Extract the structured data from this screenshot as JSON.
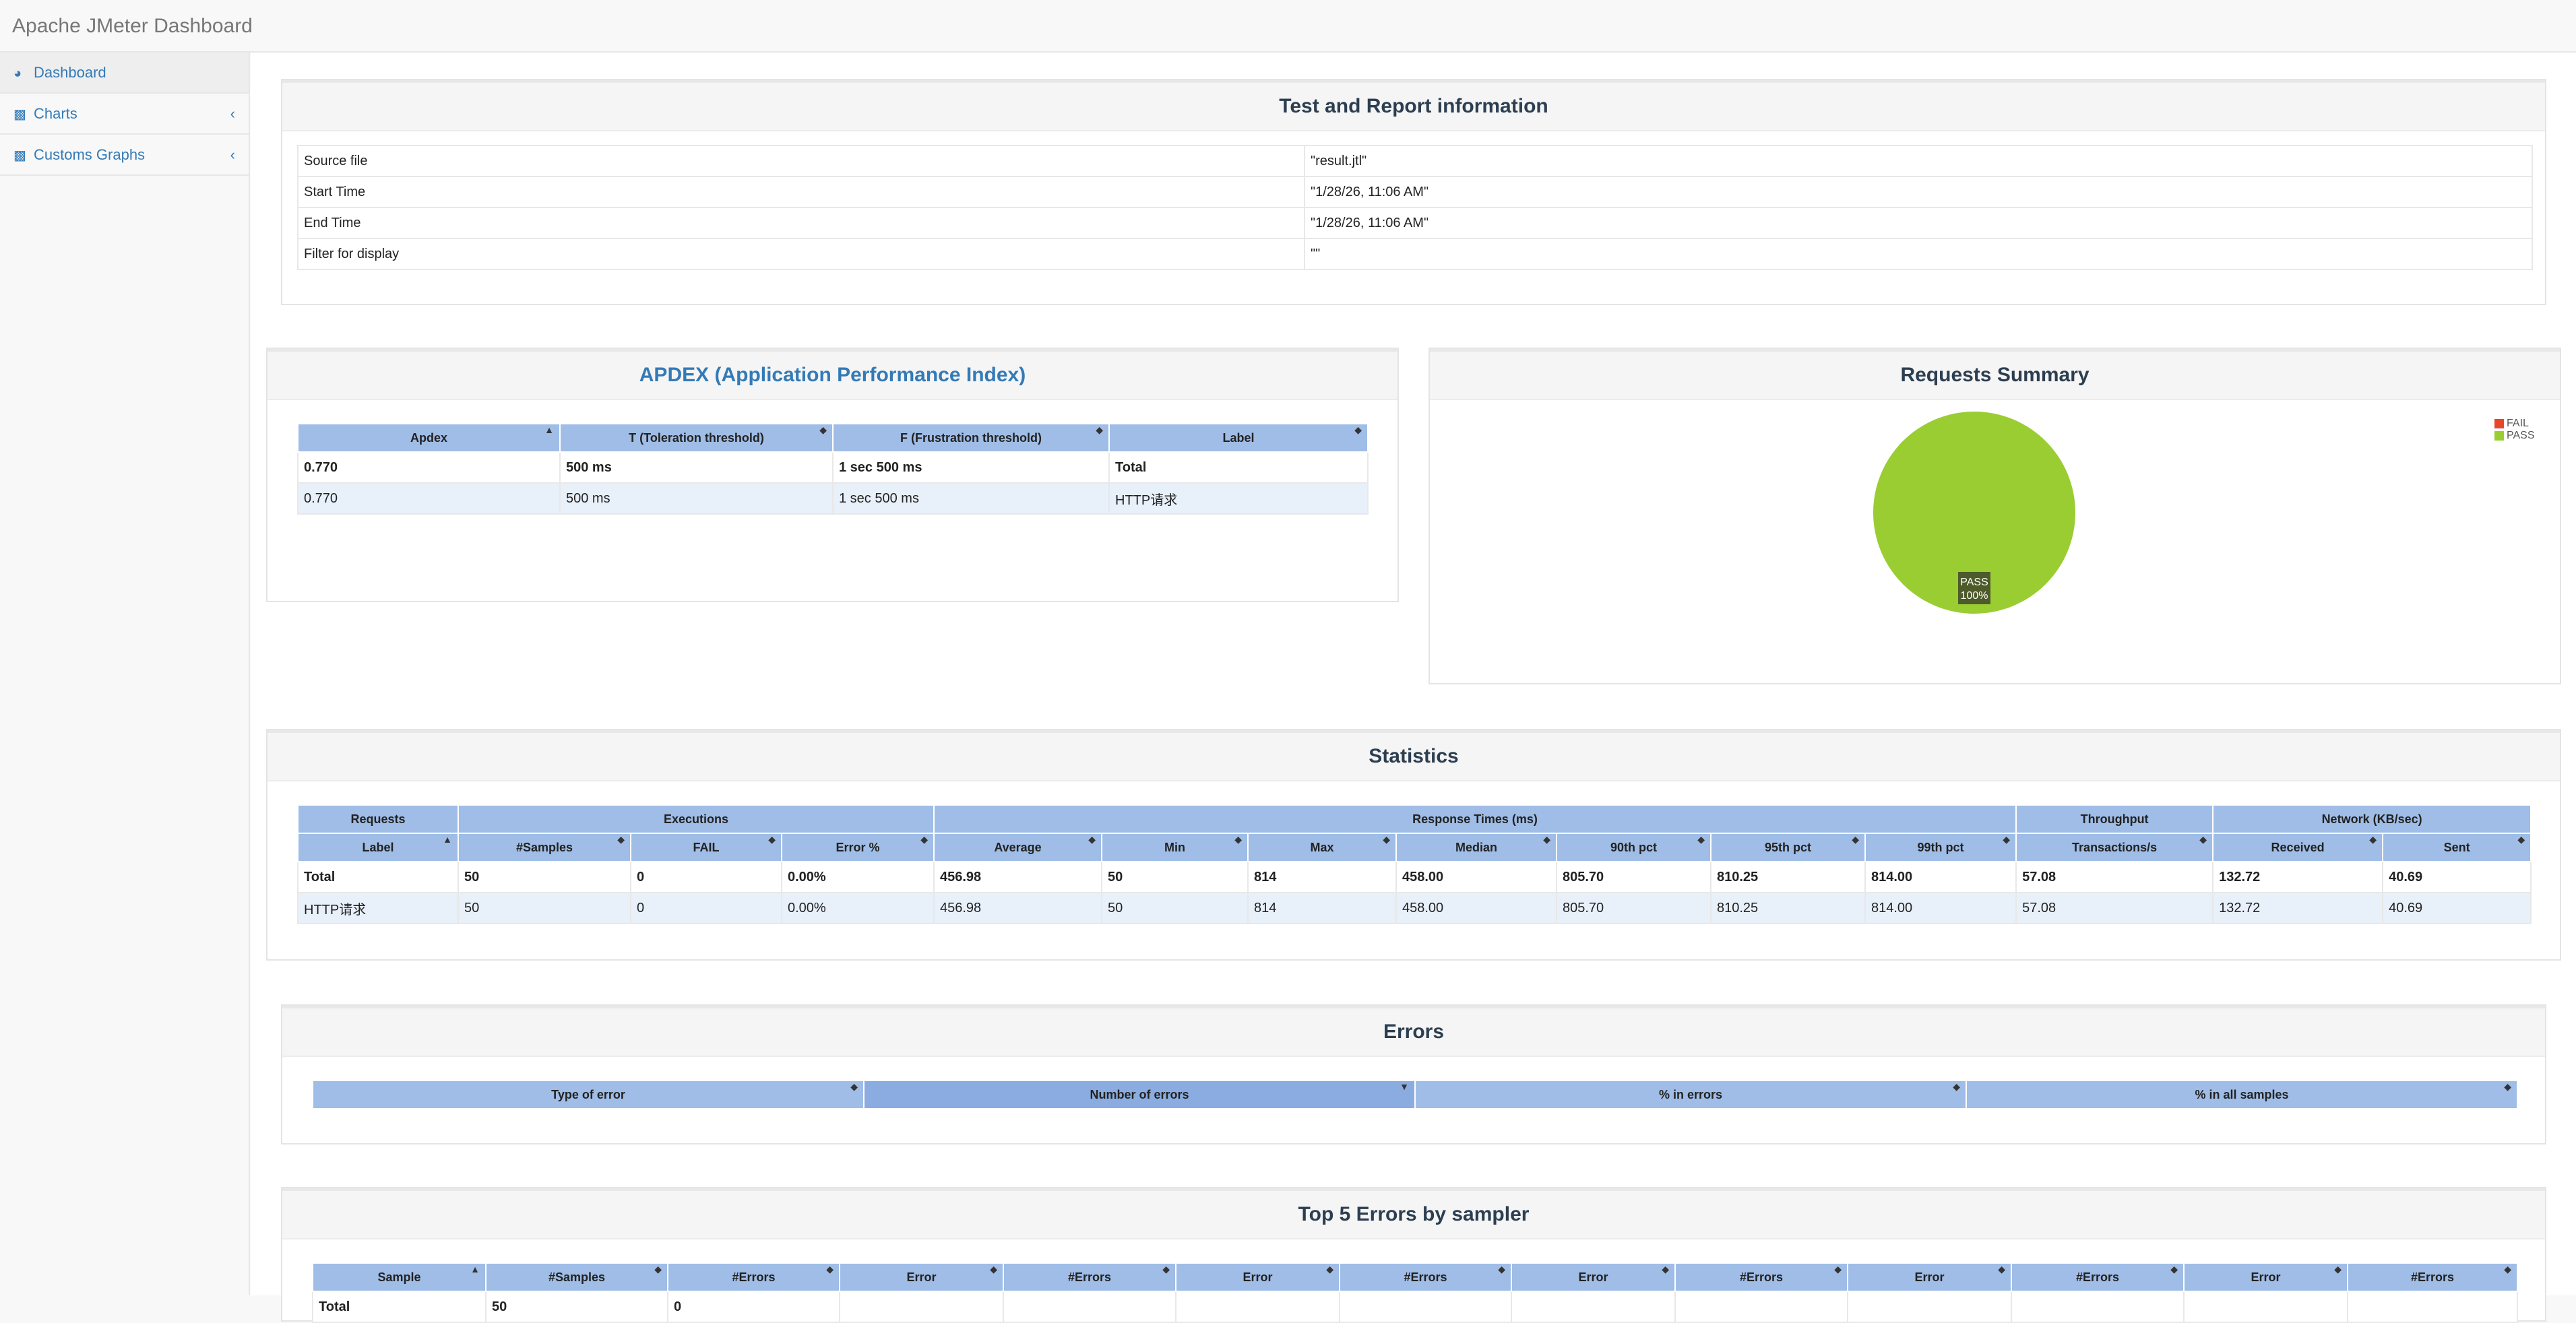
{
  "app": {
    "title": "Apache JMeter Dashboard"
  },
  "sidebar": {
    "items": [
      {
        "label": "Dashboard",
        "icon": "dashboard-icon"
      },
      {
        "label": "Charts",
        "icon": "bar-chart-icon"
      },
      {
        "label": "Customs Graphs",
        "icon": "bar-chart-icon"
      }
    ]
  },
  "report_info": {
    "title": "Test and Report information",
    "rows": [
      {
        "key": "Source file",
        "value": "\"result.jtl\""
      },
      {
        "key": "Start Time",
        "value": "\"1/28/26, 11:06 AM\""
      },
      {
        "key": "End Time",
        "value": "\"1/28/26, 11:06 AM\""
      },
      {
        "key": "Filter for display",
        "value": "\"\""
      }
    ]
  },
  "apdex": {
    "title": "APDEX (Application Performance Index)",
    "headers": [
      "Apdex",
      "T (Toleration threshold)",
      "F (Frustration threshold)",
      "Label"
    ],
    "rows": [
      [
        "0.770",
        "500 ms",
        "1 sec 500 ms",
        "Total"
      ],
      [
        "0.770",
        "500 ms",
        "1 sec 500 ms",
        "HTTP请求"
      ]
    ]
  },
  "requests_summary": {
    "title": "Requests Summary",
    "legend": [
      {
        "label": "FAIL",
        "color": "#e8462a"
      },
      {
        "label": "PASS",
        "color": "#9acd32"
      }
    ],
    "slice_label": "PASS",
    "slice_pct": "100%"
  },
  "chart_data": {
    "type": "pie",
    "title": "Requests Summary",
    "categories": [
      "FAIL",
      "PASS"
    ],
    "values": [
      0,
      100
    ],
    "colors": [
      "#e8462a",
      "#9acd32"
    ],
    "legend_position": "top-right"
  },
  "statistics": {
    "title": "Statistics",
    "groups": [
      "Requests",
      "Executions",
      "Response Times (ms)",
      "Throughput",
      "Network (KB/sec)"
    ],
    "headers": [
      "Label",
      "#Samples",
      "FAIL",
      "Error %",
      "Average",
      "Min",
      "Max",
      "Median",
      "90th pct",
      "95th pct",
      "99th pct",
      "Transactions/s",
      "Received",
      "Sent"
    ],
    "rows": [
      [
        "Total",
        "50",
        "0",
        "0.00%",
        "456.98",
        "50",
        "814",
        "458.00",
        "805.70",
        "810.25",
        "814.00",
        "57.08",
        "132.72",
        "40.69"
      ],
      [
        "HTTP请求",
        "50",
        "0",
        "0.00%",
        "456.98",
        "50",
        "814",
        "458.00",
        "805.70",
        "810.25",
        "814.00",
        "57.08",
        "132.72",
        "40.69"
      ]
    ]
  },
  "errors": {
    "title": "Errors",
    "headers": [
      "Type of error",
      "Number of errors",
      "% in errors",
      "% in all samples"
    ]
  },
  "top5": {
    "title": "Top 5 Errors by sampler",
    "headers": [
      "Sample",
      "#Samples",
      "#Errors",
      "Error",
      "#Errors",
      "Error",
      "#Errors",
      "Error",
      "#Errors",
      "Error",
      "#Errors",
      "Error",
      "#Errors"
    ],
    "rows": [
      [
        "Total",
        "50",
        "0",
        "",
        "",
        "",
        "",
        "",
        "",
        "",
        "",
        "",
        ""
      ]
    ]
  }
}
